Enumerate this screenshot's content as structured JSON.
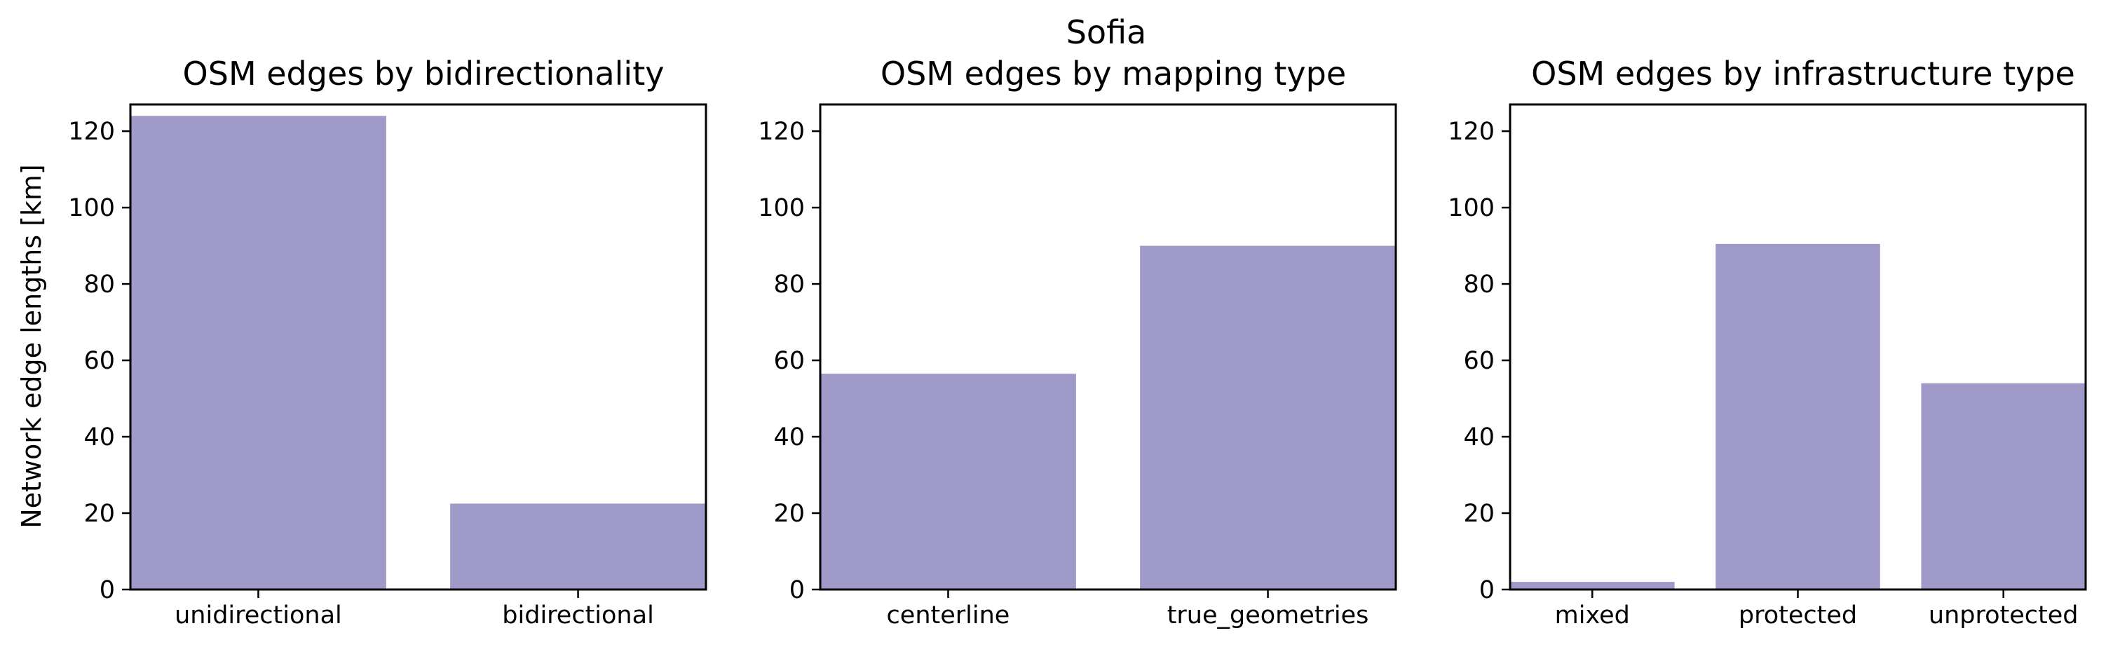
{
  "suptitle": "Sofia",
  "colors": {
    "bar": "#a09ac9"
  },
  "chart_data": [
    {
      "type": "bar",
      "title": "OSM edges by bidirectionality",
      "ylabel": "Network edge lengths [km]",
      "categories": [
        "unidirectional",
        "bidirectional"
      ],
      "values": [
        124,
        22.5
      ],
      "ylim": [
        0,
        127
      ],
      "yticks": [
        0,
        20,
        40,
        60,
        80,
        100,
        120
      ],
      "grid": false
    },
    {
      "type": "bar",
      "title": "OSM edges by mapping type",
      "ylabel": "",
      "categories": [
        "centerline",
        "true_geometries"
      ],
      "values": [
        56.5,
        90
      ],
      "ylim": [
        0,
        127
      ],
      "yticks": [
        0,
        20,
        40,
        60,
        80,
        100,
        120
      ],
      "grid": false
    },
    {
      "type": "bar",
      "title": "OSM edges by infrastructure type",
      "ylabel": "",
      "categories": [
        "mixed",
        "protected",
        "unprotected"
      ],
      "values": [
        2,
        90.5,
        54
      ],
      "ylim": [
        0,
        127
      ],
      "yticks": [
        0,
        20,
        40,
        60,
        80,
        100,
        120
      ],
      "grid": false
    }
  ]
}
